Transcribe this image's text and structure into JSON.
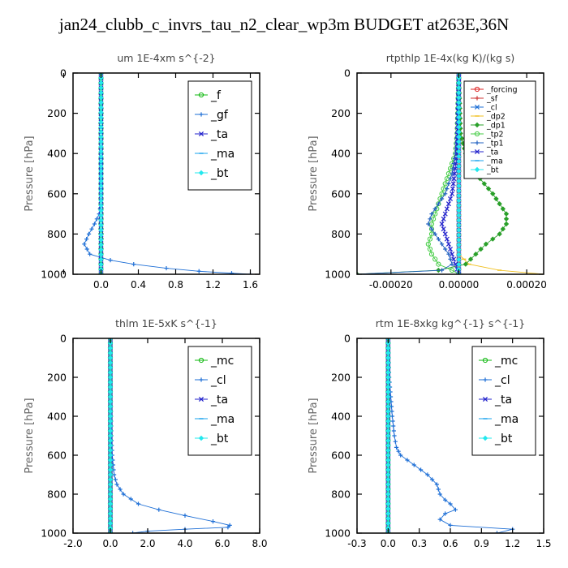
{
  "page": {
    "title": "jan24_clubb_c_invrs_tau_n2_clear_wp3m  BUDGET at263E,36N"
  },
  "colors": {
    "_f": "#11b911",
    "_gf": "#1e6fd6",
    "_ta": "#2323cc",
    "_ma": "#1aa3ee",
    "_bt": "#22e8ee",
    "_mc": "#11b911",
    "_cl": "#1e6fd6",
    "_forcing": "#dd2222",
    "_sf": "#cc3333",
    "_dp2": "#f0c020",
    "_dp1": "#2aa02a",
    "_tp2": "#44cc44",
    "_tp1": "#2060c0"
  },
  "chart_data": [
    {
      "type": "line",
      "title": "um  1E-4xm s^{-2}",
      "ylabel": "Pressure [hPa]",
      "xlim": [
        -0.3,
        1.7
      ],
      "ylim": [
        1000,
        0
      ],
      "y_inverted": true,
      "xticks": [
        -0.4,
        0.0,
        0.4,
        0.8,
        1.2,
        1.6
      ],
      "xtick_labels": [
        "",
        "0.0",
        "0.4",
        "0.8",
        "1.2",
        "1.6"
      ],
      "yticks": [
        0,
        200,
        400,
        600,
        800,
        1000
      ],
      "legend": {
        "position": "top-right",
        "entries": [
          "_f",
          "_gf",
          "_ta",
          "_ma",
          "_bt"
        ]
      },
      "series": [
        {
          "name": "_f",
          "y": [
            0,
            100,
            200,
            300,
            400,
            500,
            600,
            700,
            800,
            900,
            1000
          ],
          "x": [
            0,
            0,
            0,
            0,
            0,
            0,
            0,
            0,
            0,
            0,
            0
          ]
        },
        {
          "name": "_gf",
          "y": [
            0,
            200,
            400,
            600,
            650,
            700,
            750,
            800,
            850,
            900,
            930,
            950,
            970,
            985,
            995,
            1000
          ],
          "x": [
            0,
            0,
            0,
            0,
            0.0,
            -0.02,
            -0.07,
            -0.13,
            -0.18,
            -0.12,
            0.1,
            0.35,
            0.7,
            1.05,
            1.4,
            1.6
          ]
        },
        {
          "name": "_ta",
          "y": [
            0,
            1000
          ],
          "x": [
            0,
            0
          ]
        },
        {
          "name": "_ma",
          "y": [
            0,
            1000
          ],
          "x": [
            0,
            0
          ]
        },
        {
          "name": "_bt",
          "y": [
            0,
            1000
          ],
          "x": [
            0,
            0
          ]
        }
      ]
    },
    {
      "type": "line",
      "title": "rtpthlp  1E-4x(kg K)/(kg s)",
      "ylabel": "Pressure [hPa]",
      "xlim": [
        -0.0003,
        0.00025
      ],
      "ylim": [
        1000,
        0
      ],
      "y_inverted": true,
      "xticks": [
        -0.0002,
        0.0,
        0.0002
      ],
      "xtick_labels": [
        "-0.00020",
        "0.00000",
        "0.00020"
      ],
      "yticks": [
        0,
        200,
        400,
        600,
        800,
        1000
      ],
      "legend": {
        "position": "top-right",
        "entries": [
          "_forcing",
          "_sf",
          "_cl",
          "_dp2",
          "_dp1",
          "_tp2",
          "_tp1",
          "_ta",
          "_ma",
          "_bt"
        ]
      },
      "series": [
        {
          "name": "_forcing",
          "y": [
            0,
            1000
          ],
          "x": [
            0,
            0
          ]
        },
        {
          "name": "_sf",
          "y": [
            0,
            1000
          ],
          "x": [
            0,
            0
          ]
        },
        {
          "name": "_cl",
          "y": [
            0,
            1000
          ],
          "x": [
            0,
            0
          ]
        },
        {
          "name": "_dp2",
          "y": [
            0,
            900,
            950,
            980,
            1000
          ],
          "x": [
            0,
            0,
            3e-05,
            0.00012,
            0.00025
          ]
        },
        {
          "name": "_dp1",
          "y": [
            0,
            300,
            400,
            500,
            600,
            650,
            700,
            750,
            800,
            850,
            900,
            950,
            980,
            1000
          ],
          "x": [
            0,
            5e-06,
            2e-05,
            5e-05,
            0.0001,
            0.00012,
            0.00014,
            0.00014,
            0.00012,
            8e-05,
            5e-05,
            2e-05,
            -6e-05,
            -0.0003
          ]
        },
        {
          "name": "_tp2",
          "y": [
            0,
            300,
            400,
            500,
            600,
            650,
            700,
            750,
            800,
            850,
            900,
            950,
            980,
            1000
          ],
          "x": [
            0,
            -5e-06,
            -1e-05,
            -3e-05,
            -5e-05,
            -6e-05,
            -7e-05,
            -8e-05,
            -8e-05,
            -9e-05,
            -8e-05,
            -6e-05,
            -2e-05,
            0.0
          ]
        },
        {
          "name": "_tp1",
          "y": [
            0,
            300,
            400,
            500,
            600,
            650,
            700,
            750,
            800,
            850,
            900,
            950,
            980,
            1000
          ],
          "x": [
            0,
            -5e-06,
            -1e-05,
            -2e-05,
            -4e-05,
            -6e-05,
            -8e-05,
            -9e-05,
            -7e-05,
            -5e-05,
            -3e-05,
            -2e-05,
            -5e-05,
            -0.0003
          ]
        },
        {
          "name": "_ta",
          "y": [
            0,
            400,
            600,
            700,
            750,
            800,
            850,
            900,
            950,
            1000
          ],
          "x": [
            0,
            -5e-06,
            -2e-05,
            -4e-05,
            -5e-05,
            -4e-05,
            -3e-05,
            -2e-05,
            -1e-05,
            0.0
          ]
        },
        {
          "name": "_ma",
          "y": [
            0,
            1000
          ],
          "x": [
            0,
            0
          ]
        },
        {
          "name": "_bt",
          "y": [
            0,
            1000
          ],
          "x": [
            0,
            0
          ]
        }
      ]
    },
    {
      "type": "line",
      "title": "thlm  1E-5xK s^{-1}",
      "ylabel": "Pressure [hPa]",
      "xlim": [
        -2.0,
        8.0
      ],
      "ylim": [
        1000,
        0
      ],
      "y_inverted": true,
      "xticks": [
        -2.0,
        0.0,
        2.0,
        4.0,
        6.0,
        8.0
      ],
      "xtick_labels": [
        "-2.0",
        "0.0",
        "2.0",
        "4.0",
        "6.0",
        "8.0"
      ],
      "yticks": [
        0,
        200,
        400,
        600,
        800,
        1000
      ],
      "legend": {
        "position": "top-right",
        "entries": [
          "_mc",
          "_cl",
          "_ta",
          "_ma",
          "_bt"
        ]
      },
      "series": [
        {
          "name": "_mc",
          "y": [
            0,
            1000
          ],
          "x": [
            0,
            0
          ]
        },
        {
          "name": "_cl",
          "y": [
            0,
            300,
            500,
            600,
            700,
            750,
            800,
            850,
            880,
            910,
            940,
            960,
            970,
            980,
            990,
            1000
          ],
          "x": [
            0,
            0.02,
            0.05,
            0.1,
            0.2,
            0.35,
            0.7,
            1.5,
            2.6,
            4.0,
            5.5,
            6.4,
            6.3,
            4.0,
            2.0,
            1.2
          ]
        },
        {
          "name": "_ta",
          "y": [
            0,
            1000
          ],
          "x": [
            0,
            0
          ]
        },
        {
          "name": "_ma",
          "y": [
            0,
            1000
          ],
          "x": [
            0,
            0
          ]
        },
        {
          "name": "_bt",
          "y": [
            0,
            1000
          ],
          "x": [
            0,
            0
          ]
        }
      ]
    },
    {
      "type": "line",
      "title": "rtm  1E-8xkg kg^{-1} s^{-1}",
      "ylabel": "Pressure [hPa]",
      "xlim": [
        -0.3,
        1.5
      ],
      "ylim": [
        1000,
        0
      ],
      "y_inverted": true,
      "xticks": [
        -0.3,
        0.0,
        0.3,
        0.6,
        0.9,
        1.2,
        1.5
      ],
      "xtick_labels": [
        "-0.3",
        "0.0",
        "0.3",
        "0.6",
        "0.9",
        "1.2",
        "1.5"
      ],
      "yticks": [
        0,
        200,
        400,
        600,
        800,
        1000
      ],
      "legend": {
        "position": "top-right",
        "entries": [
          "_mc",
          "_cl",
          "_ta",
          "_ma",
          "_bt"
        ]
      },
      "series": [
        {
          "name": "_mc",
          "y": [
            0,
            1000
          ],
          "x": [
            0,
            0
          ]
        },
        {
          "name": "_cl",
          "y": [
            0,
            200,
            400,
            500,
            560,
            600,
            650,
            700,
            750,
            800,
            830,
            850,
            880,
            900,
            930,
            960,
            980,
            1000
          ],
          "x": [
            0,
            0.01,
            0.04,
            0.06,
            0.08,
            0.12,
            0.25,
            0.38,
            0.47,
            0.5,
            0.55,
            0.6,
            0.65,
            0.55,
            0.5,
            0.6,
            1.2,
            1.05
          ]
        },
        {
          "name": "_ta",
          "y": [
            0,
            1000
          ],
          "x": [
            0,
            0
          ]
        },
        {
          "name": "_ma",
          "y": [
            0,
            1000
          ],
          "x": [
            0,
            0
          ]
        },
        {
          "name": "_bt",
          "y": [
            0,
            1000
          ],
          "x": [
            0,
            0
          ]
        }
      ]
    }
  ]
}
